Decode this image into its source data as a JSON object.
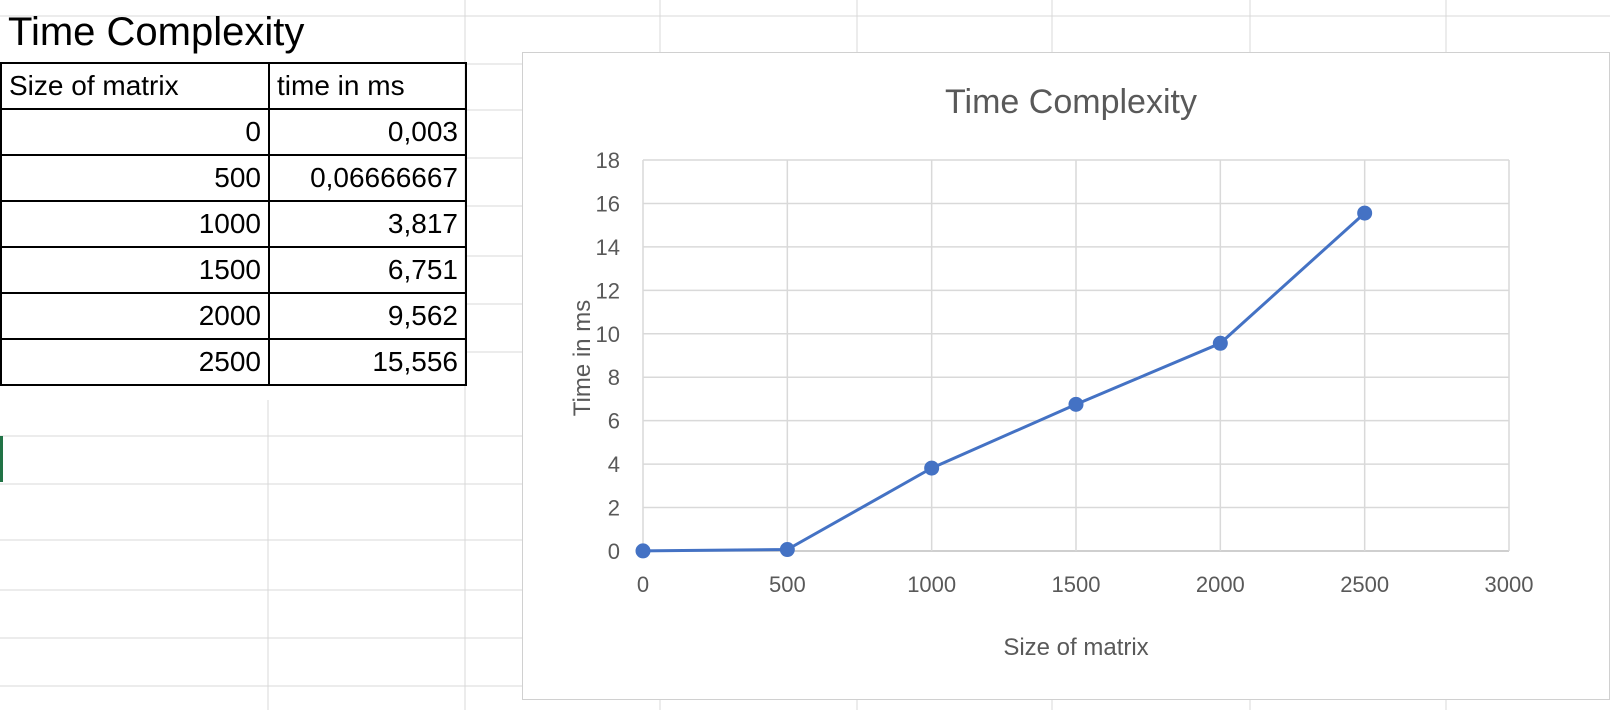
{
  "sheet": {
    "title": "Time Complexity",
    "table": {
      "headers": [
        "Size of matrix",
        "time in ms"
      ],
      "rows": [
        [
          "0",
          "0,003"
        ],
        [
          "500",
          "0,06666667"
        ],
        [
          "1000",
          "3,817"
        ],
        [
          "1500",
          "6,751"
        ],
        [
          "2000",
          "9,562"
        ],
        [
          "2500",
          "15,556"
        ]
      ]
    }
  },
  "chart_data": {
    "type": "scatter",
    "title": "Time Complexity",
    "xlabel": "Size of matrix",
    "ylabel": "Time in ms",
    "xlim": [
      0,
      3000
    ],
    "ylim": [
      0,
      18
    ],
    "xticks": [
      0,
      500,
      1000,
      1500,
      2000,
      2500,
      3000
    ],
    "yticks": [
      0,
      2,
      4,
      6,
      8,
      10,
      12,
      14,
      16,
      18
    ],
    "grid": true,
    "lines": true,
    "markers": true,
    "series": [
      {
        "color": "#4472C4",
        "x": [
          0,
          500,
          1000,
          1500,
          2000,
          2500
        ],
        "y": [
          0.003,
          0.06666667,
          3.817,
          6.751,
          9.562,
          15.556
        ]
      }
    ]
  }
}
